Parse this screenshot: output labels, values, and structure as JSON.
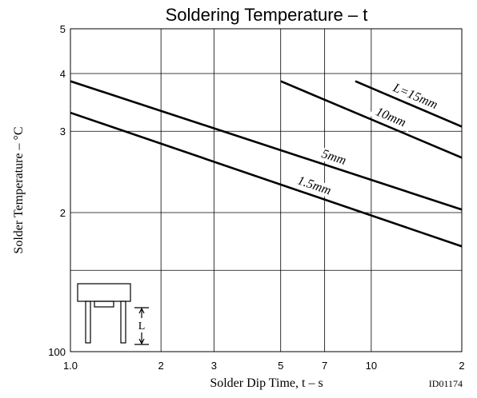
{
  "chart_data": {
    "type": "line",
    "title": "Soldering Temperature  –  t",
    "x_label": "Solder Dip Time,  t  –  s",
    "y_label": "Solder Temperature  –  °C",
    "code": "ID01174",
    "inset_label": "L",
    "log_x": true,
    "log_y": true,
    "grid": true,
    "xlim": [
      1,
      20
    ],
    "ylim": [
      100,
      500
    ],
    "xticks": [
      {
        "value": 1,
        "label": "1.0"
      },
      2,
      3,
      5,
      7,
      10,
      {
        "value": 20,
        "label": "2"
      }
    ],
    "yticks": [
      100,
      {
        "value": 200,
        "label": "2"
      },
      {
        "value": 300,
        "label": "3"
      },
      {
        "value": 400,
        "label": "4"
      },
      {
        "value": 500,
        "label": "5"
      }
    ],
    "minor_yticks": [
      150
    ],
    "series": [
      {
        "name": "1.5mm",
        "color": "#000000",
        "x": [
          1,
          20
        ],
        "values": [
          329,
          169
        ]
      },
      {
        "name": "5mm",
        "color": "#000000",
        "x": [
          1,
          20
        ],
        "values": [
          385,
          203
        ]
      },
      {
        "name": "10mm",
        "color": "#000000",
        "x": [
          5,
          20
        ],
        "values": [
          385,
          263
        ]
      },
      {
        "name": "L=15mm",
        "color": "#000000",
        "x": [
          8.85,
          20
        ],
        "values": [
          385,
          307
        ]
      }
    ]
  }
}
